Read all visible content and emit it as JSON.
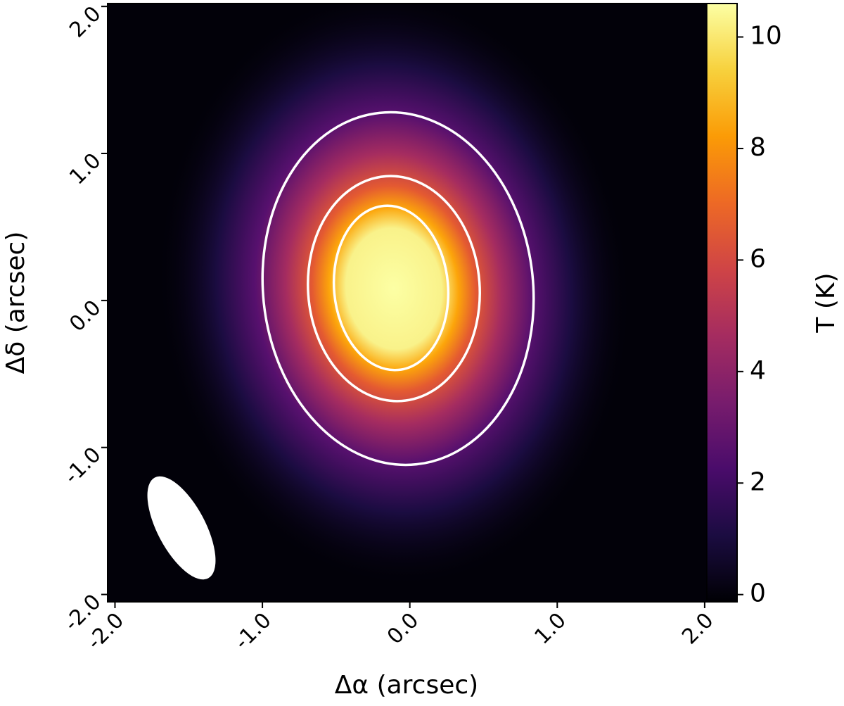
{
  "chart_data": {
    "type": "heatmap",
    "colormap": "inferno",
    "xlabel": "Δα (arcsec)",
    "ylabel": "Δδ (arcsec)",
    "colorbar_label": "T (K)",
    "xlim": [
      -2.05,
      2.22
    ],
    "ylim": [
      -2.05,
      2.02
    ],
    "xticks": [
      {
        "value": -2,
        "label": "-2.0"
      },
      {
        "value": -1,
        "label": "-1.0"
      },
      {
        "value": 0,
        "label": "0.0"
      },
      {
        "value": 1,
        "label": "1.0"
      },
      {
        "value": 2,
        "label": "2.0"
      }
    ],
    "yticks": [
      {
        "value": -2,
        "label": "-2.0"
      },
      {
        "value": -1,
        "label": "-1.0"
      },
      {
        "value": 0,
        "label": "0.0"
      },
      {
        "value": 1,
        "label": "1.0"
      },
      {
        "value": 2,
        "label": "2.0"
      }
    ],
    "clim": [
      -0.13,
      10.6
    ],
    "cticks": [
      0,
      2,
      4,
      6,
      8,
      10
    ]
  }
}
